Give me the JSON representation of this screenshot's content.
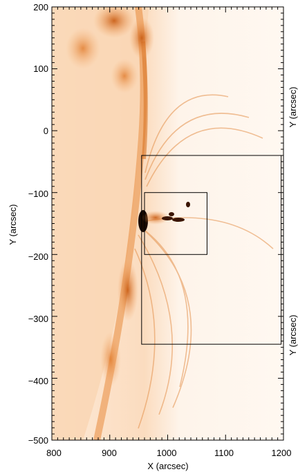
{
  "figure": {
    "x_axis": {
      "label": "X (arcsec)",
      "range": [
        800,
        1200
      ],
      "tick_labels": [
        "800",
        "900",
        "1000",
        "1100",
        "1200"
      ]
    },
    "y_axis": {
      "label": "Y (arcsec)",
      "range": [
        -500,
        200
      ],
      "tick_labels": [
        "200",
        "100",
        "0",
        "−100",
        "−200",
        "−300",
        "−400",
        "−500"
      ]
    },
    "right_axis_labels": [
      "Y (arcsec)",
      "Y (arcsec)"
    ],
    "boxes": [
      {
        "name": "large-box",
        "x": [
          955,
          1196
        ],
        "y": [
          -345,
          -40
        ]
      },
      {
        "name": "small-box",
        "x": [
          960,
          1068
        ],
        "y": [
          -200,
          -100
        ]
      }
    ],
    "colors": {
      "colormap": "white-orange-black",
      "frame": "#000000"
    }
  }
}
